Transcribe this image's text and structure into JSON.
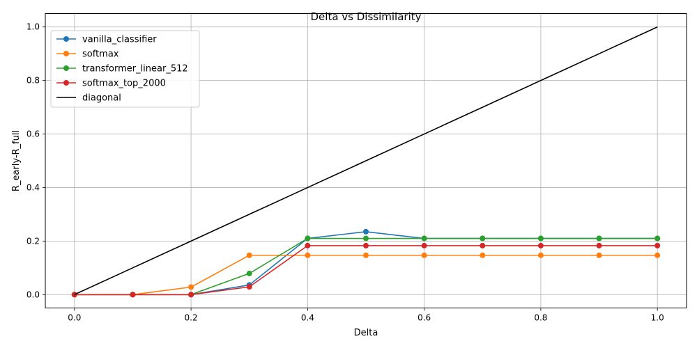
{
  "chart_data": {
    "type": "line",
    "title": "Delta vs Dissimilarity",
    "xlabel": "Delta",
    "ylabel": "R_early-R_full",
    "xlim": [
      -0.05,
      1.05
    ],
    "ylim": [
      -0.05,
      1.05
    ],
    "xticks": [
      0.0,
      0.2,
      0.4,
      0.6,
      0.8,
      1.0
    ],
    "xtick_labels": [
      "0.0",
      "0.2",
      "0.4",
      "0.6",
      "0.8",
      "1.0"
    ],
    "yticks": [
      0.0,
      0.2,
      0.4,
      0.6,
      0.8,
      1.0
    ],
    "ytick_labels": [
      "0.0",
      "0.2",
      "0.4",
      "0.6",
      "0.8",
      "1.0"
    ],
    "grid": true,
    "legend_position": "upper-left",
    "x": [
      0.0,
      0.1,
      0.2,
      0.3,
      0.4,
      0.5,
      0.6,
      0.7,
      0.8,
      0.9,
      1.0
    ],
    "series": [
      {
        "name": "vanilla_classifier",
        "color": "#1f77b4",
        "marker": "circle",
        "values": [
          0.0,
          0.0,
          0.0,
          0.036,
          0.21,
          0.235,
          0.21,
          0.21,
          0.21,
          0.21,
          0.21
        ]
      },
      {
        "name": "softmax",
        "color": "#ff7f0e",
        "marker": "circle",
        "values": [
          0.0,
          0.0,
          0.028,
          0.147,
          0.147,
          0.147,
          0.147,
          0.147,
          0.147,
          0.147,
          0.147
        ]
      },
      {
        "name": "transformer_linear_512",
        "color": "#2ca02c",
        "marker": "circle",
        "values": [
          0.0,
          0.0,
          0.0,
          0.079,
          0.21,
          0.21,
          0.21,
          0.21,
          0.21,
          0.21,
          0.21
        ]
      },
      {
        "name": "softmax_top_2000",
        "color": "#d62728",
        "marker": "circle",
        "values": [
          0.0,
          0.0,
          0.0,
          0.029,
          0.183,
          0.183,
          0.183,
          0.183,
          0.183,
          0.183,
          0.183
        ]
      },
      {
        "name": "diagonal",
        "color": "#000000",
        "marker": "none",
        "values": [
          0.0,
          0.1,
          0.2,
          0.3,
          0.4,
          0.5,
          0.6,
          0.7,
          0.8,
          0.9,
          1.0
        ]
      }
    ]
  }
}
